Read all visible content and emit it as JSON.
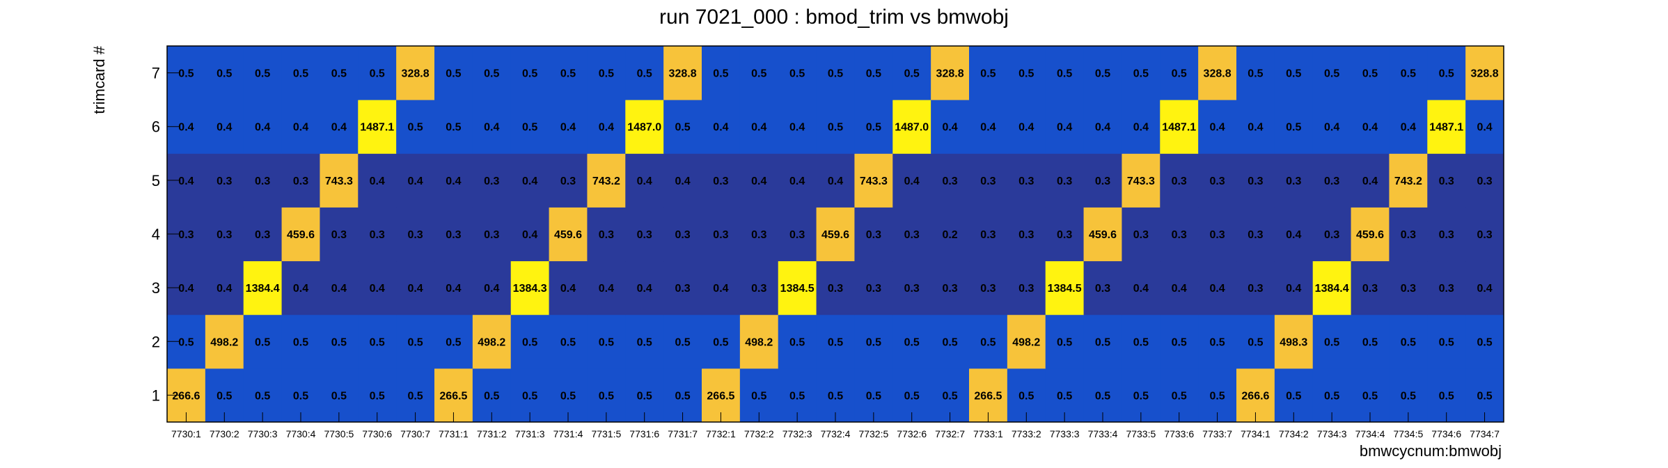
{
  "chart_data": {
    "type": "heatmap",
    "title": "run 7021_000 : bmod_trim vs bmwobj",
    "xlabel": "bmwcycnum:bmwobj",
    "ylabel": "trimcard #",
    "x_categories": [
      "7730:1",
      "7730:2",
      "7730:3",
      "7730:4",
      "7730:5",
      "7730:6",
      "7730:7",
      "7731:1",
      "7731:2",
      "7731:3",
      "7731:4",
      "7731:5",
      "7731:6",
      "7731:7",
      "7732:1",
      "7732:2",
      "7732:3",
      "7732:4",
      "7732:5",
      "7732:6",
      "7732:7",
      "7733:1",
      "7733:2",
      "7733:3",
      "7733:4",
      "7733:5",
      "7733:6",
      "7733:7",
      "7734:1",
      "7734:2",
      "7734:3",
      "7734:4",
      "7734:5",
      "7734:6",
      "7734:7"
    ],
    "y_categories": [
      "1",
      "2",
      "3",
      "4",
      "5",
      "6",
      "7"
    ],
    "values": [
      [
        266.6,
        0.5,
        0.5,
        0.5,
        0.5,
        0.5,
        0.5,
        266.5,
        0.5,
        0.5,
        0.5,
        0.5,
        0.5,
        0.5,
        266.5,
        0.5,
        0.5,
        0.5,
        0.5,
        0.5,
        0.5,
        266.5,
        0.5,
        0.5,
        0.5,
        0.5,
        0.5,
        0.5,
        266.6,
        0.5,
        0.5,
        0.5,
        0.5,
        0.5,
        0.5
      ],
      [
        0.5,
        498.2,
        0.5,
        0.5,
        0.5,
        0.5,
        0.5,
        0.5,
        498.2,
        0.5,
        0.5,
        0.5,
        0.5,
        0.5,
        0.5,
        498.2,
        0.5,
        0.5,
        0.5,
        0.5,
        0.5,
        0.5,
        498.2,
        0.5,
        0.5,
        0.5,
        0.5,
        0.5,
        0.5,
        498.3,
        0.5,
        0.5,
        0.5,
        0.5,
        0.5
      ],
      [
        0.4,
        0.4,
        1384.4,
        0.4,
        0.4,
        0.4,
        0.4,
        0.4,
        0.4,
        1384.3,
        0.4,
        0.4,
        0.4,
        0.3,
        0.4,
        0.3,
        1384.5,
        0.3,
        0.3,
        0.3,
        0.3,
        0.3,
        0.3,
        1384.5,
        0.3,
        0.4,
        0.4,
        0.4,
        0.3,
        0.4,
        1384.4,
        0.3,
        0.3,
        0.3,
        0.4
      ],
      [
        0.3,
        0.3,
        0.3,
        459.6,
        0.3,
        0.3,
        0.3,
        0.3,
        0.3,
        0.4,
        459.6,
        0.3,
        0.3,
        0.3,
        0.3,
        0.3,
        0.3,
        459.6,
        0.3,
        0.3,
        0.2,
        0.3,
        0.3,
        0.3,
        459.6,
        0.3,
        0.3,
        0.3,
        0.3,
        0.4,
        0.3,
        459.6,
        0.3,
        0.3,
        0.3
      ],
      [
        0.4,
        0.3,
        0.3,
        0.3,
        743.3,
        0.4,
        0.4,
        0.4,
        0.3,
        0.4,
        0.3,
        743.2,
        0.4,
        0.4,
        0.3,
        0.4,
        0.4,
        0.4,
        743.3,
        0.4,
        0.3,
        0.3,
        0.3,
        0.3,
        0.3,
        743.3,
        0.3,
        0.3,
        0.3,
        0.3,
        0.3,
        0.4,
        743.2,
        0.3,
        0.3
      ],
      [
        0.4,
        0.4,
        0.4,
        0.4,
        0.4,
        1487.1,
        0.5,
        0.5,
        0.4,
        0.5,
        0.4,
        0.4,
        1487.0,
        0.5,
        0.4,
        0.4,
        0.4,
        0.5,
        0.5,
        1487.0,
        0.4,
        0.4,
        0.4,
        0.4,
        0.4,
        0.4,
        1487.1,
        0.4,
        0.4,
        0.5,
        0.4,
        0.4,
        0.4,
        1487.1,
        0.4
      ],
      [
        0.5,
        0.5,
        0.5,
        0.5,
        0.5,
        0.5,
        328.8,
        0.5,
        0.5,
        0.5,
        0.5,
        0.5,
        0.5,
        328.8,
        0.5,
        0.5,
        0.5,
        0.5,
        0.5,
        0.5,
        328.8,
        0.5,
        0.5,
        0.5,
        0.5,
        0.5,
        0.5,
        328.8,
        0.5,
        0.5,
        0.5,
        0.5,
        0.5,
        0.5,
        328.8
      ]
    ],
    "colors": {
      "low_dark": "#2a3a9a",
      "low_mid": "#1750cc",
      "hi_orange": "#f7c33a",
      "hi_yellow": "#fff310",
      "frame": "#000000"
    }
  }
}
